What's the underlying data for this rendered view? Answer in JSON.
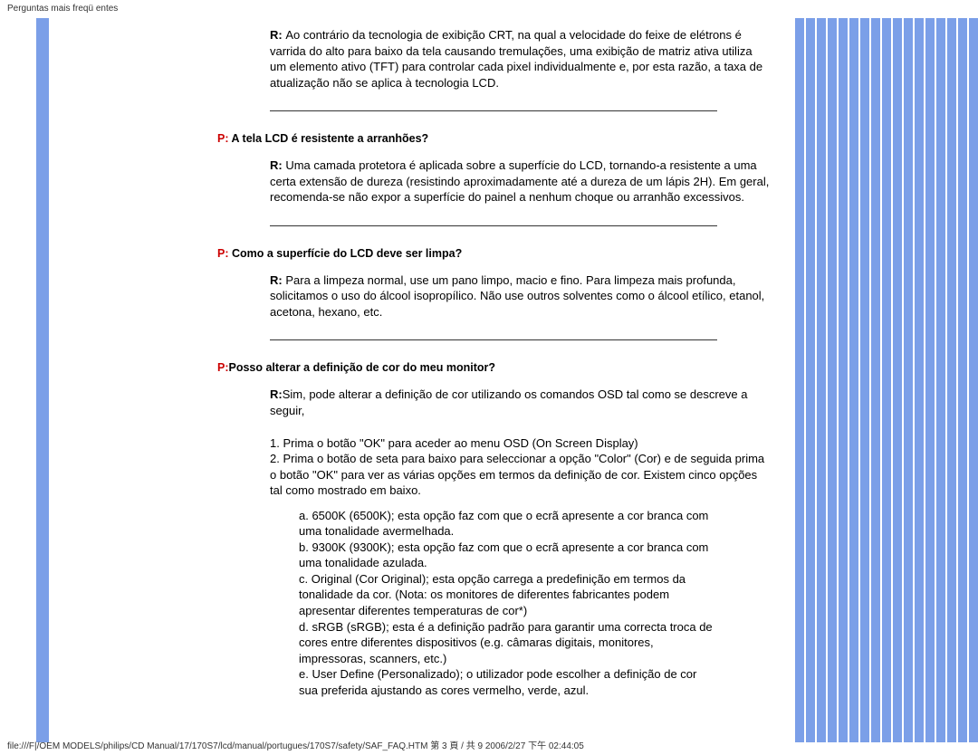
{
  "header_text": "Perguntas mais freqü entes",
  "colors": {
    "left_bar": "#7b9fe8",
    "q_label": "#cc0000",
    "stripe": "#7b9fe8",
    "bg": "#ffffff",
    "text": "#000000"
  },
  "faq0": {
    "a_label": "R: ",
    "a_text": "Ao contrário da tecnologia de exibição CRT, na qual a velocidade do feixe de elétrons é varrida do alto para baixo da tela causando tremulações, uma exibição de matriz ativa utiliza um elemento ativo (TFT) para controlar cada pixel individualmente e, por esta razão, a taxa de atualização não se aplica à tecnologia LCD."
  },
  "faq1": {
    "q_label": "P: ",
    "q_text": "A tela LCD é resistente a arranhões?",
    "a_label": "R: ",
    "a_text": "Uma camada protetora é aplicada sobre a superfície do LCD, tornando-a resistente a uma certa extensão de dureza (resistindo aproximadamente até a dureza de um lápis 2H). Em geral, recomenda-se não expor a superfície do painel a nenhum choque ou arranhão excessivos."
  },
  "faq2": {
    "q_label": "P: ",
    "q_text": "Como a superfície do LCD deve ser limpa?",
    "a_label": "R: ",
    "a_text": "Para a limpeza normal, use um pano limpo, macio e fino. Para limpeza mais profunda, solicitamos o uso do álcool isopropílico. Não use outros solventes como o álcool etílico, etanol, acetona, hexano, etc."
  },
  "faq3": {
    "q_label": "P:",
    "q_text": "Posso alterar a definição de cor do meu monitor?",
    "a_label": "R:",
    "a_text": "Sim, pode alterar a definição de cor utilizando os comandos OSD tal como se descreve a seguir,",
    "step1": "1. Prima o botão \"OK\" para aceder ao menu OSD (On Screen Display)",
    "step2": "2. Prima o botão de seta para baixo para seleccionar a opção \"Color\" (Cor) e de seguida prima o botão \"OK\" para ver as várias opções em termos da definição de cor. Existem cinco opções tal como mostrado em baixo.",
    "opt_a": "a. 6500K (6500K); esta opção faz com que o ecrã apresente a cor branca com uma tonalidade avermelhada.",
    "opt_b": "b. 9300K (9300K); esta opção faz com que o ecrã apresente a cor branca com uma tonalidade azulada.",
    "opt_c": "c. Original (Cor Original); esta opção carrega a predefinição em termos da tonalidade da cor. (Nota: os monitores de diferentes fabricantes podem apresentar diferentes temperaturas de cor*)",
    "opt_d": "d. sRGB (sRGB); esta é a definição padrão para garantir uma correcta troca de cores entre diferentes dispositivos (e.g. câmaras digitais, monitores, impressoras, scanners, etc.)",
    "opt_e": "e. User Define (Personalizado); o utilizador pode escolher a definição de cor sua preferida ajustando as cores vermelho, verde, azul."
  },
  "footer_text": "file:///F|/OEM MODELS/philips/CD Manual/17/170S7/lcd/manual/portugues/170S7/safety/SAF_FAQ.HTM 第 3 頁 / 共 9 2006/2/27 下午 02:44:05"
}
